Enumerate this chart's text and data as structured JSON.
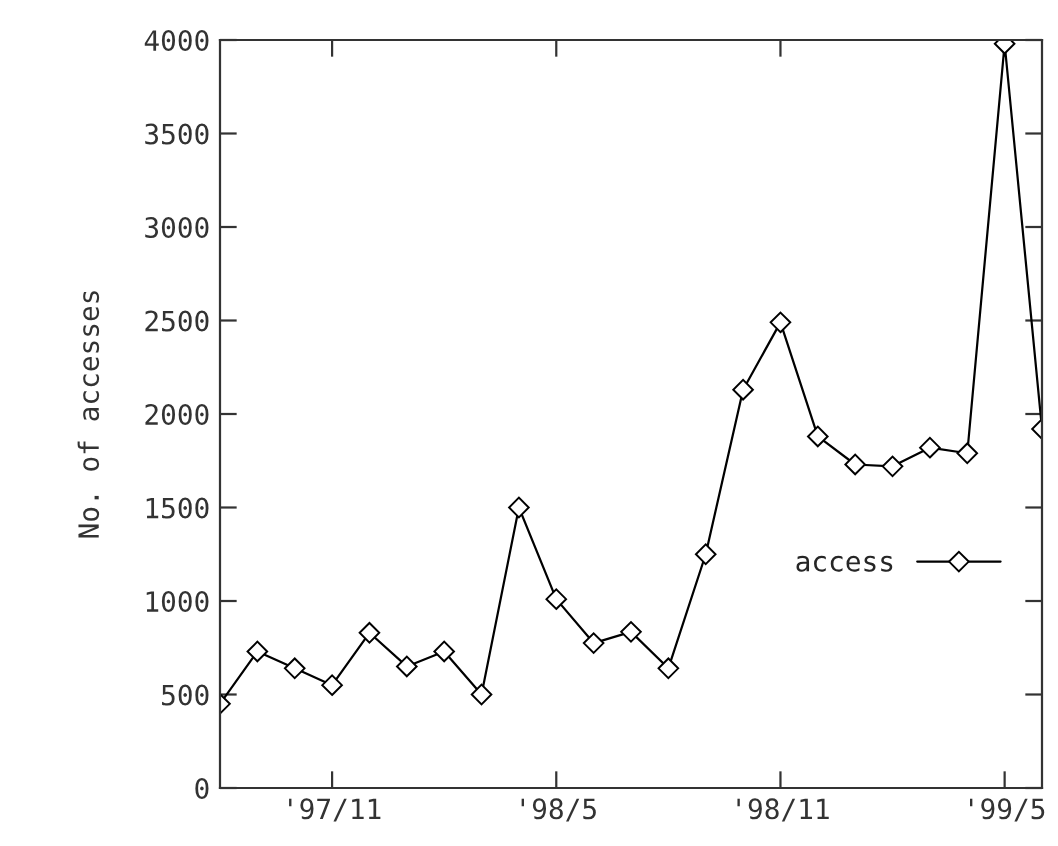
{
  "chart_data": {
    "type": "line",
    "ylabel": "No. of accesses",
    "x": [
      "1997-08",
      "1997-09",
      "1997-10",
      "1997-11",
      "1997-12",
      "1998-01",
      "1998-02",
      "1998-03",
      "1998-04",
      "1998-05",
      "1998-06",
      "1998-07",
      "1998-08",
      "1998-09",
      "1998-10",
      "1998-11",
      "1998-12",
      "1999-01",
      "1999-02",
      "1999-03",
      "1999-04",
      "1999-05",
      "1999-06"
    ],
    "series": [
      {
        "name": "access",
        "color": "#000000",
        "values": [
          450,
          730,
          640,
          550,
          830,
          650,
          730,
          500,
          1500,
          1010,
          775,
          835,
          640,
          1250,
          2130,
          2490,
          1880,
          1730,
          1720,
          1820,
          1790,
          3980,
          1920
        ]
      }
    ],
    "xlim": [
      "1997-08",
      "1999-06"
    ],
    "xticks": [
      {
        "value": "1997-11",
        "label": "'97/11"
      },
      {
        "value": "1998-05",
        "label": "'98/5"
      },
      {
        "value": "1998-11",
        "label": "'98/11"
      },
      {
        "value": "1999-05",
        "label": "'99/5"
      }
    ],
    "ylim": [
      0,
      4000
    ],
    "yticks": [
      0,
      500,
      1000,
      1500,
      2000,
      2500,
      3000,
      3500,
      4000
    ],
    "grid": false,
    "legend": "right",
    "marker": "diamond",
    "line_style": "solid"
  }
}
